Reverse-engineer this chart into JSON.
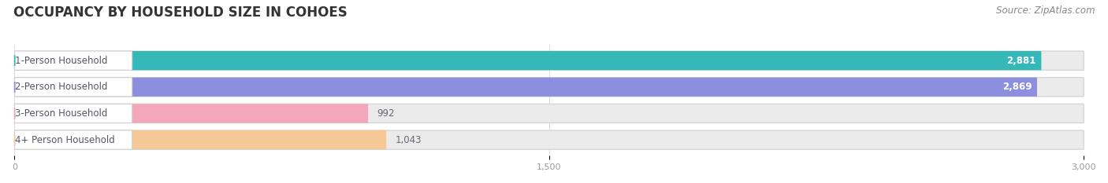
{
  "title": "OCCUPANCY BY HOUSEHOLD SIZE IN COHOES",
  "source": "Source: ZipAtlas.com",
  "categories": [
    "1-Person Household",
    "2-Person Household",
    "3-Person Household",
    "4+ Person Household"
  ],
  "values": [
    2881,
    2869,
    992,
    1043
  ],
  "bar_colors": [
    "#35b8b8",
    "#8b8fdd",
    "#f4a7bb",
    "#f5c896"
  ],
  "bar_bg_color": "#ebebeb",
  "value_labels": [
    "2,881",
    "2,869",
    "992",
    "1,043"
  ],
  "label_text_color": "#555566",
  "value_text_color_inside": "#ffffff",
  "value_text_color_outside": "#666677",
  "xlim": [
    0,
    3000
  ],
  "xticks": [
    0,
    1500,
    3000
  ],
  "xtick_labels": [
    "0",
    "1,500",
    "3,000"
  ],
  "label_fontsize": 8.5,
  "title_fontsize": 12,
  "source_fontsize": 8.5,
  "figsize": [
    14.06,
    2.33
  ],
  "dpi": 100,
  "bg_color": "#ffffff"
}
